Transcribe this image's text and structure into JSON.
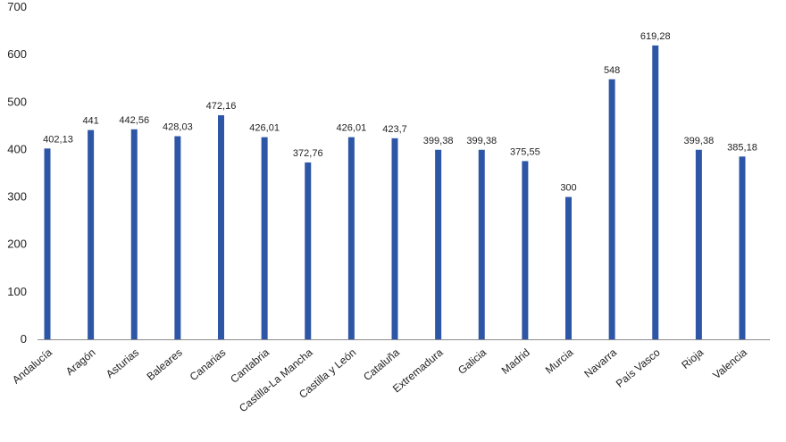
{
  "chart_data": {
    "type": "bar",
    "title": "",
    "xlabel": "",
    "ylabel": "",
    "ylim": [
      0,
      700
    ],
    "yticks": [
      "0",
      "100",
      "200",
      "300",
      "400",
      "500",
      "600",
      "700"
    ],
    "grid": false,
    "legend": "none",
    "bar_color": "#2e56a6",
    "categories": [
      "Andalucía",
      "Aragón",
      "Asturias",
      "Baleares",
      "Canarias",
      "Cantabria",
      "Castilla-La Mancha",
      "Castilla y León",
      "Cataluña",
      "Extremadura",
      "Galicia",
      "Madrid",
      "Murcia",
      "Navarra",
      "País Vasco",
      "Rioja",
      "Valencia"
    ],
    "values": [
      402.13,
      441,
      442.56,
      428.03,
      472.16,
      426.01,
      372.76,
      426.01,
      423.7,
      399.38,
      399.38,
      375.55,
      300,
      548,
      619.28,
      399.38,
      385.18
    ],
    "value_labels": [
      "402,13",
      "441",
      "442,56",
      "428,03",
      "472,16",
      "426,01",
      "372,76",
      "426,01",
      "423,7",
      "399,38",
      "399,38",
      "375,55",
      "300",
      "548",
      "619,28",
      "399,38",
      "385,18"
    ]
  }
}
